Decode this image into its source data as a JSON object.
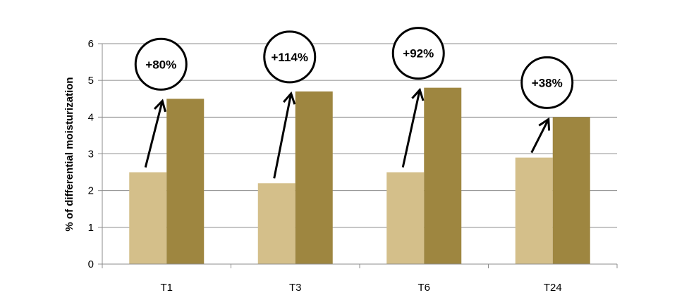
{
  "chart_data": {
    "type": "bar",
    "title": "",
    "xlabel": "",
    "ylabel": "% of differential moisturization",
    "ylim": [
      0,
      6
    ],
    "yticks": [
      "0",
      "1",
      "2",
      "3",
      "4",
      "5",
      "6"
    ],
    "grid": true,
    "legend": "none",
    "categories": [
      "T1",
      "T3",
      "T6",
      "T24"
    ],
    "series": [
      {
        "color": "#d4bf8a",
        "values": [
          2.5,
          2.2,
          2.5,
          2.9
        ]
      },
      {
        "color": "#9e8640",
        "values": [
          4.5,
          4.7,
          4.8,
          4.0
        ]
      }
    ],
    "annotations": [
      "+80%",
      "+114%",
      "+92%",
      "+38%"
    ]
  }
}
